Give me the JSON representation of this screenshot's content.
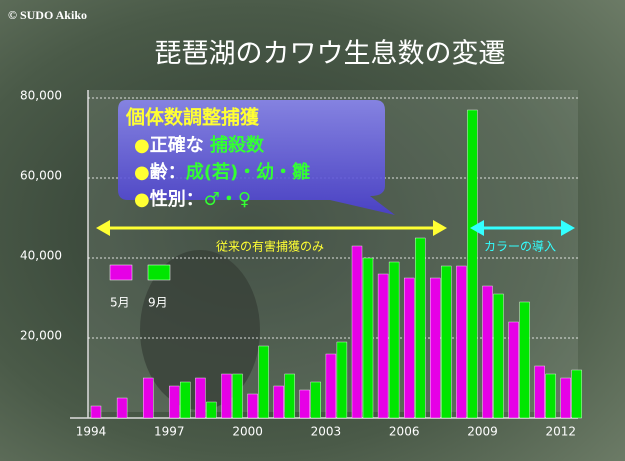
{
  "chart_data": {
    "type": "bar",
    "title": "琵琶湖のカワウ生息数の変遷",
    "copyright": "© SUDO Akiko",
    "categories": [
      "1994",
      null,
      null,
      "1997",
      null,
      null,
      "2000",
      null,
      null,
      "2003",
      null,
      null,
      "2006",
      null,
      null,
      "2009",
      null,
      null,
      "2012"
    ],
    "series": [
      {
        "name": "5月",
        "color": "#e600e6",
        "values": [
          3000,
          5000,
          10000,
          8000,
          10000,
          11000,
          6000,
          8000,
          7000,
          16000,
          43000,
          36000,
          35000,
          35000,
          38000,
          33000,
          24000,
          13000,
          10000
        ]
      },
      {
        "name": "9月",
        "color": "#00e600",
        "values": [
          null,
          null,
          null,
          9000,
          4000,
          11000,
          18000,
          11000,
          9000,
          19000,
          40000,
          39000,
          45000,
          38000,
          77000,
          31000,
          29000,
          11000,
          12000
        ]
      }
    ],
    "ylim": [
      0,
      82000
    ],
    "yticks": [
      {
        "value": 20000,
        "label": "20,000"
      },
      {
        "value": 40000,
        "label": "40,000"
      },
      {
        "value": 60000,
        "label": "60,000"
      },
      {
        "value": 80000,
        "label": "80,000"
      }
    ],
    "grid": true,
    "callout": {
      "title": "個体数調整捕獲",
      "items": [
        [
          "●",
          "正確な ",
          "捕殺数"
        ],
        [
          "●",
          "齢：",
          "成(若)・幼・雛"
        ],
        [
          "●",
          "性別：",
          "♂・♀"
        ]
      ]
    },
    "annotations": [
      "従来の有害捕獲のみ",
      "カラーの導入"
    ]
  }
}
